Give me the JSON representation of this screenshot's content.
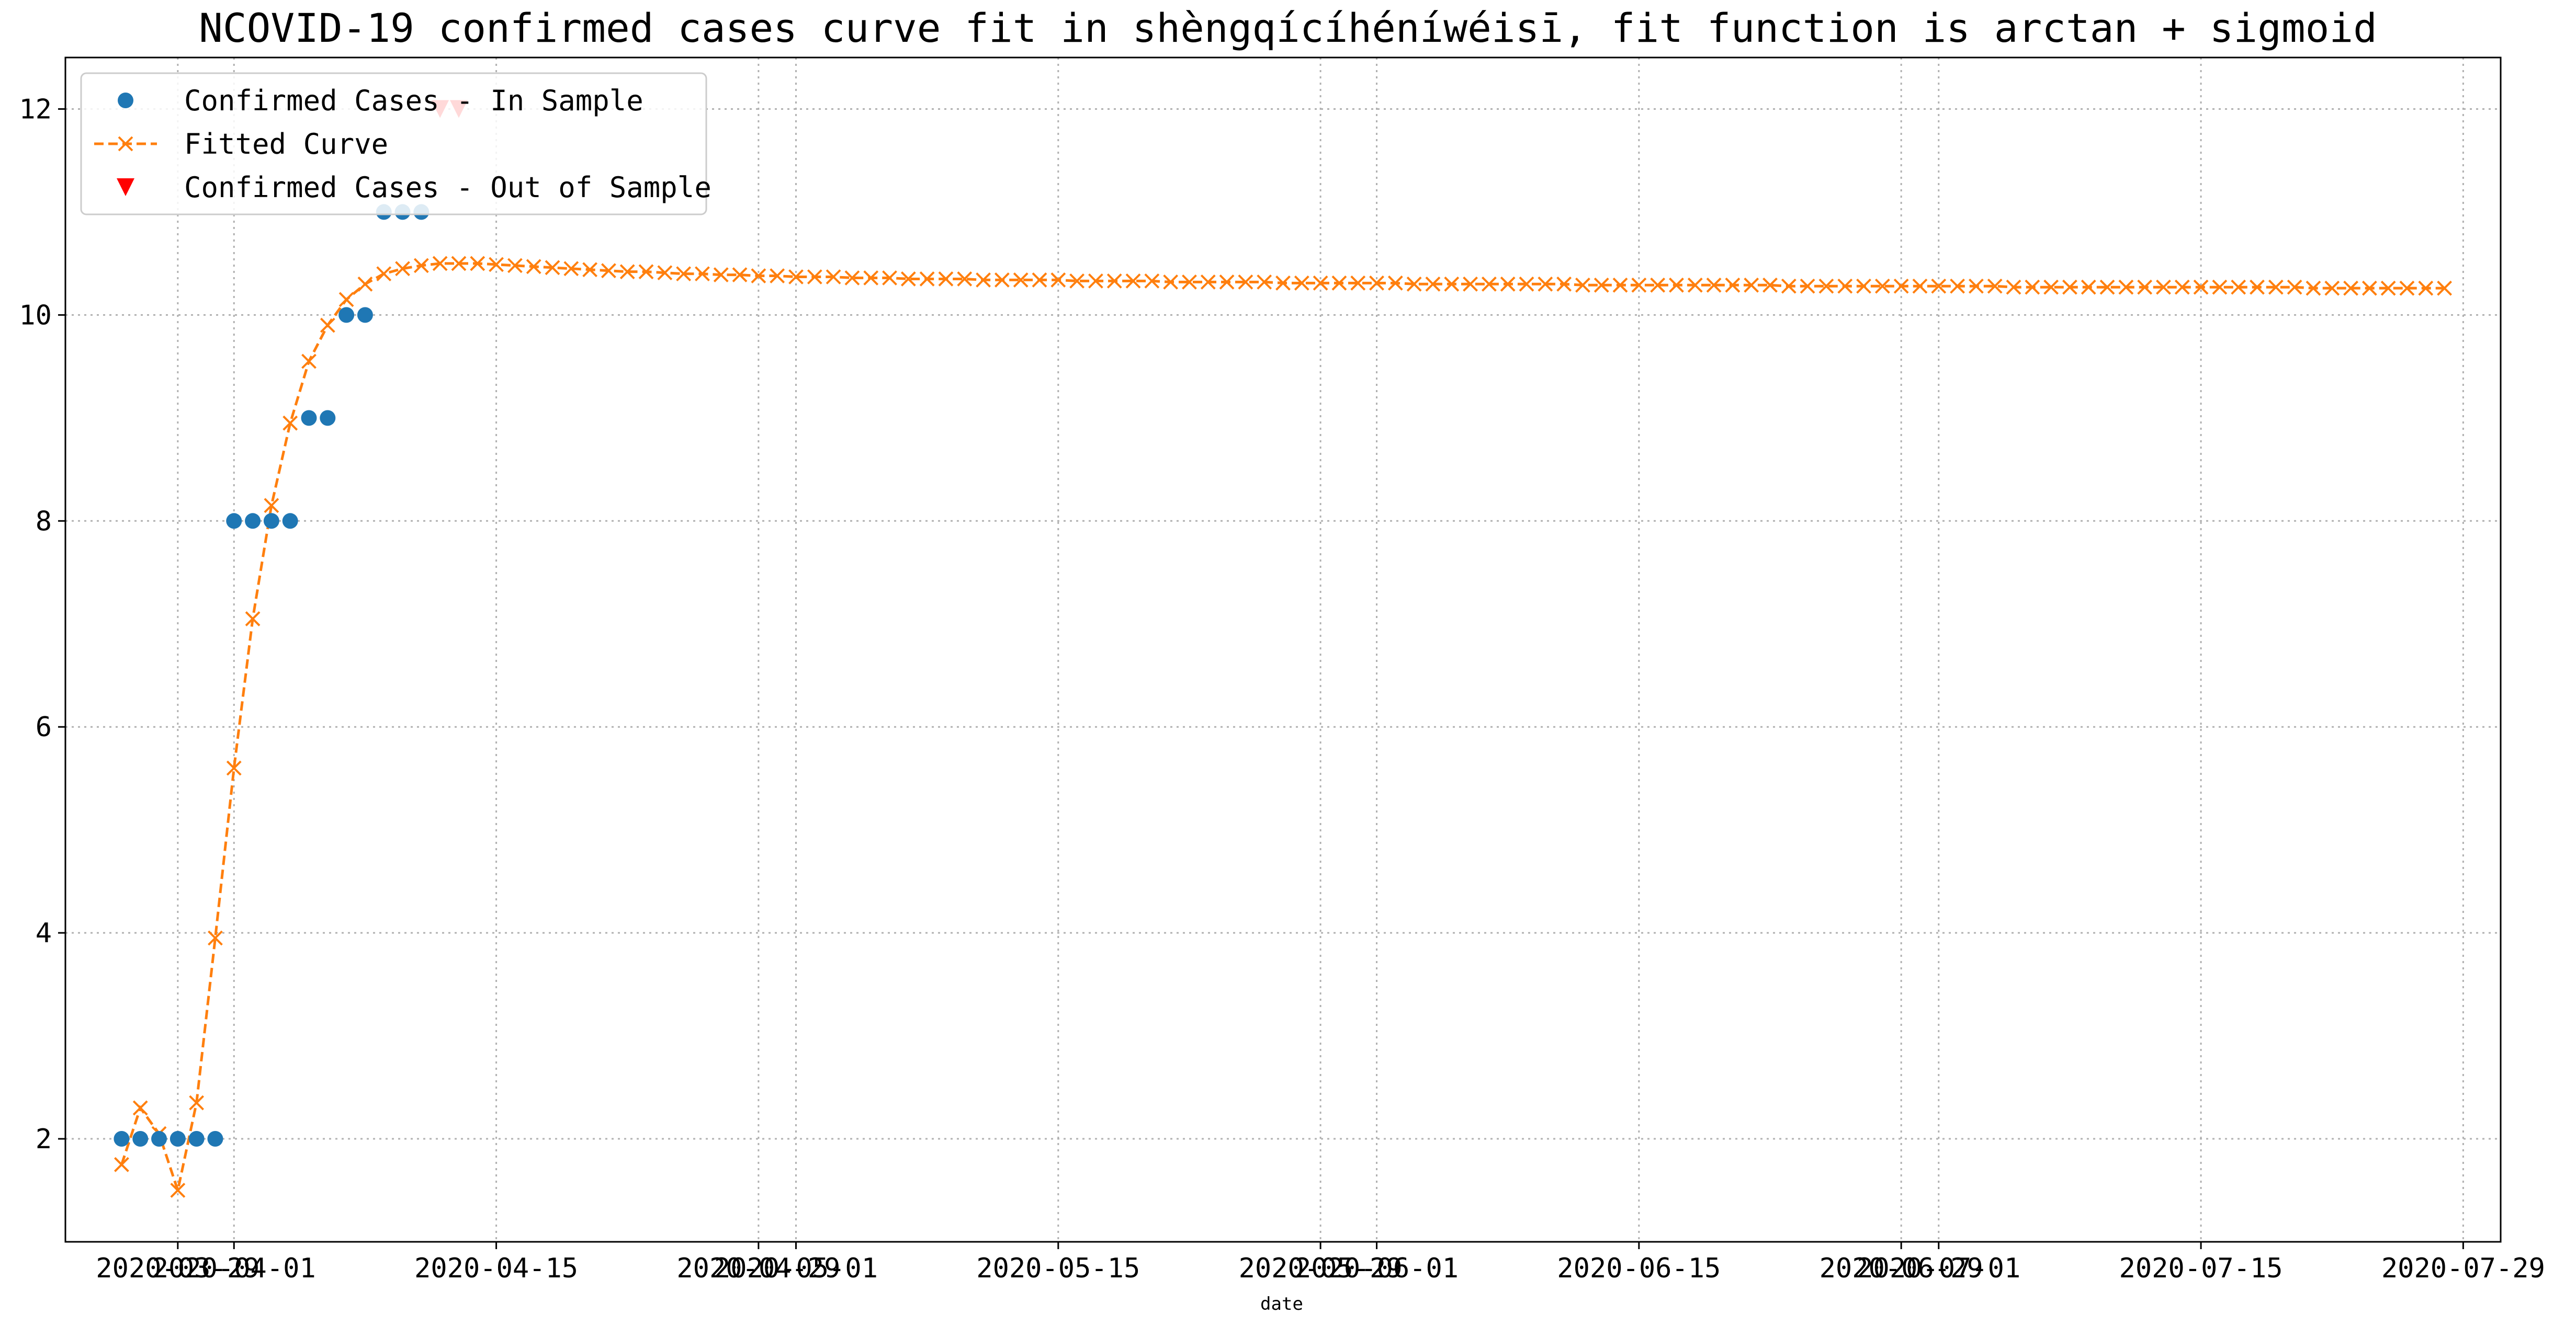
{
  "chart_data": {
    "type": "line",
    "title": "NCOVID-19 confirmed cases curve fit in shèngqícíhéníwéisī, fit function is arctan + sigmoid",
    "xlabel": "date",
    "ylabel": "",
    "grid": true,
    "legend_position": "top-left",
    "x_axis": {
      "type": "date",
      "range": [
        "2020-03-23",
        "2020-07-31"
      ],
      "tick_labels": [
        {
          "date": "2020-03-29",
          "label": "2020-03-29"
        },
        {
          "date": "2020-04-01",
          "label": "2020-04-01"
        },
        {
          "date": "2020-04-15",
          "label": "2020-04-15"
        },
        {
          "date": "2020-04-29",
          "label": "2020-04-29"
        },
        {
          "date": "2020-05-01",
          "label": "2020-05-01"
        },
        {
          "date": "2020-05-15",
          "label": "2020-05-15"
        },
        {
          "date": "2020-05-29",
          "label": "2020-05-29"
        },
        {
          "date": "2020-06-01",
          "label": "2020-06-01"
        },
        {
          "date": "2020-06-15",
          "label": "2020-06-15"
        },
        {
          "date": "2020-06-29",
          "label": "2020-06-29"
        },
        {
          "date": "2020-07-01",
          "label": "2020-07-01"
        },
        {
          "date": "2020-07-15",
          "label": "2020-07-15"
        },
        {
          "date": "2020-07-29",
          "label": "2020-07-29"
        }
      ]
    },
    "y_axis": {
      "range": [
        1,
        12.5
      ],
      "ticks": [
        2,
        4,
        6,
        8,
        10,
        12
      ]
    },
    "legend": [
      {
        "label": "Confirmed Cases - In Sample",
        "color": "#1f77b4",
        "marker": "circle"
      },
      {
        "label": "Fitted Curve",
        "color": "#ff7f0e",
        "marker": "x",
        "line": "dashed"
      },
      {
        "label": "Confirmed Cases - Out of Sample",
        "color": "#ff0000",
        "marker": "triangle-down"
      }
    ],
    "series": [
      {
        "name": "Confirmed Cases - In Sample",
        "color": "#1f77b4",
        "marker": "circle",
        "points": [
          {
            "x": "2020-03-26",
            "y": 2
          },
          {
            "x": "2020-03-27",
            "y": 2
          },
          {
            "x": "2020-03-28",
            "y": 2
          },
          {
            "x": "2020-03-29",
            "y": 2
          },
          {
            "x": "2020-03-30",
            "y": 2
          },
          {
            "x": "2020-03-31",
            "y": 2
          },
          {
            "x": "2020-04-01",
            "y": 8
          },
          {
            "x": "2020-04-02",
            "y": 8
          },
          {
            "x": "2020-04-03",
            "y": 8
          },
          {
            "x": "2020-04-04",
            "y": 8
          },
          {
            "x": "2020-04-05",
            "y": 9
          },
          {
            "x": "2020-04-06",
            "y": 9
          },
          {
            "x": "2020-04-07",
            "y": 10
          },
          {
            "x": "2020-04-08",
            "y": 10
          },
          {
            "x": "2020-04-09",
            "y": 11
          },
          {
            "x": "2020-04-10",
            "y": 11
          },
          {
            "x": "2020-04-11",
            "y": 11
          }
        ]
      },
      {
        "name": "Fitted Curve",
        "color": "#ff7f0e",
        "marker": "x",
        "line": "dashed",
        "start_date": "2020-03-26",
        "step_days": 1,
        "values": [
          1.75,
          2.3,
          2.05,
          1.5,
          2.35,
          3.95,
          5.6,
          7.05,
          8.15,
          8.95,
          9.55,
          9.9,
          10.15,
          10.3,
          10.4,
          10.45,
          10.48,
          10.5,
          10.5,
          10.5,
          10.49,
          10.48,
          10.47,
          10.46,
          10.45,
          10.44,
          10.43,
          10.42,
          10.42,
          10.41,
          10.4,
          10.4,
          10.39,
          10.39,
          10.38,
          10.38,
          10.37,
          10.37,
          10.37,
          10.36,
          10.36,
          10.36,
          10.35,
          10.35,
          10.35,
          10.35,
          10.34,
          10.34,
          10.34,
          10.34,
          10.34,
          10.33,
          10.33,
          10.33,
          10.33,
          10.33,
          10.32,
          10.32,
          10.32,
          10.32,
          10.32,
          10.32,
          10.31,
          10.31,
          10.31,
          10.31,
          10.31,
          10.31,
          10.31,
          10.3,
          10.3,
          10.3,
          10.3,
          10.3,
          10.3,
          10.3,
          10.3,
          10.3,
          10.29,
          10.29,
          10.29,
          10.29,
          10.29,
          10.29,
          10.29,
          10.29,
          10.29,
          10.29,
          10.29,
          10.28,
          10.28,
          10.28,
          10.28,
          10.28,
          10.28,
          10.28,
          10.28,
          10.28,
          10.28,
          10.28,
          10.28,
          10.27,
          10.27,
          10.27,
          10.27,
          10.27,
          10.27,
          10.27,
          10.27,
          10.27,
          10.27,
          10.27,
          10.27,
          10.27,
          10.27,
          10.27,
          10.27,
          10.26,
          10.26,
          10.26,
          10.26,
          10.26,
          10.26,
          10.26,
          10.26
        ]
      },
      {
        "name": "Confirmed Cases - Out of Sample",
        "color": "#ff0000",
        "marker": "triangle-down",
        "points": [
          {
            "x": "2020-04-12",
            "y": 12
          },
          {
            "x": "2020-04-13",
            "y": 12
          }
        ]
      }
    ]
  }
}
